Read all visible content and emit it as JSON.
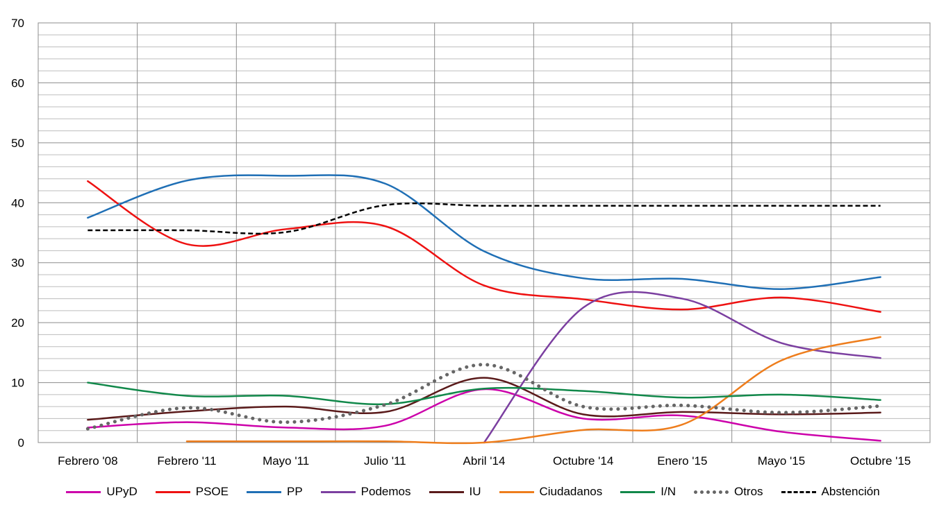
{
  "chart_data": {
    "type": "line",
    "title": "",
    "xlabel": "",
    "ylabel": "",
    "ylim": [
      0,
      70
    ],
    "y_ticks": [
      0,
      10,
      20,
      30,
      40,
      50,
      60,
      70
    ],
    "y_minor_step": 2,
    "categories": [
      "Febrero '08",
      "Febrero '11",
      "Mayo '11",
      "Julio '11",
      "Abril '14",
      "Octubre '14",
      "Enero '15",
      "Mayo '15",
      "Octubre '15"
    ],
    "grid": true,
    "legend_position": "bottom",
    "series": [
      {
        "name": "UPyD",
        "color": "#cc00aa",
        "style": "solid",
        "values": [
          2.5,
          3.4,
          2.5,
          2.8,
          8.9,
          4.0,
          4.5,
          1.8,
          0.3
        ]
      },
      {
        "name": "PSOE",
        "color": "#ee1111",
        "style": "solid",
        "values": [
          43.6,
          33.1,
          35.6,
          36.1,
          26.2,
          23.9,
          22.2,
          24.2,
          21.8
        ]
      },
      {
        "name": "PP",
        "color": "#1f6fb5",
        "style": "solid",
        "values": [
          37.5,
          43.7,
          44.5,
          43.2,
          31.9,
          27.4,
          27.3,
          25.6,
          27.6
        ]
      },
      {
        "name": "Podemos",
        "color": "#7b3fa0",
        "style": "solid",
        "values": [
          null,
          null,
          null,
          null,
          0.0,
          22.5,
          24.0,
          16.6,
          14.1
        ]
      },
      {
        "name": "IU",
        "color": "#5a1a1a",
        "style": "solid",
        "values": [
          3.8,
          5.2,
          6.0,
          5.1,
          10.8,
          4.7,
          5.1,
          4.7,
          5.0
        ]
      },
      {
        "name": "Ciudadanos",
        "color": "#ee7d1c",
        "style": "solid",
        "values": [
          null,
          0.2,
          0.2,
          0.2,
          0.0,
          2.1,
          3.0,
          13.7,
          17.6
        ]
      },
      {
        "name": "I/N",
        "color": "#11884a",
        "style": "solid",
        "values": [
          10.0,
          7.8,
          7.8,
          6.4,
          9.0,
          8.6,
          7.5,
          8.0,
          7.1
        ]
      },
      {
        "name": "Otros",
        "color": "#666666",
        "style": "dotted",
        "values": [
          2.3,
          5.8,
          3.4,
          6.3,
          13.0,
          6.0,
          6.2,
          5.0,
          6.1
        ]
      },
      {
        "name": "Abstención",
        "color": "#000000",
        "style": "dashed",
        "values": [
          35.4,
          35.4,
          35.1,
          39.6,
          39.5,
          39.5,
          39.5,
          39.5,
          39.5
        ]
      }
    ]
  }
}
